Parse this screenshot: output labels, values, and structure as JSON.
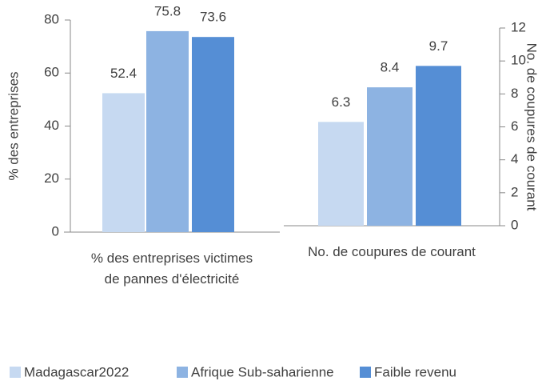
{
  "chart_data": [
    {
      "type": "bar",
      "ylabel": "% des entreprises",
      "categories": [
        "% des entreprises victimes de pannes d'électricité"
      ],
      "series": [
        {
          "name": "Madagascar2022",
          "color": "#c6d9f1",
          "values": [
            52.4
          ]
        },
        {
          "name": "Afrique Sub-saharienne",
          "color": "#8db3e2",
          "values": [
            75.8
          ]
        },
        {
          "name": "Faible revenu",
          "color": "#558ed5",
          "values": [
            73.6
          ]
        }
      ],
      "ylim": [
        0,
        80
      ],
      "yticks": [
        0,
        20,
        40,
        60,
        80
      ],
      "legend": "bottom"
    },
    {
      "type": "bar",
      "y2label": "No. de coupures de courant",
      "categories": [
        "No. de coupures de courant"
      ],
      "series": [
        {
          "name": "Madagascar2022",
          "color": "#c6d9f1",
          "values": [
            6.3
          ],
          "axis": "y2"
        },
        {
          "name": "Afrique Sub-saharienne",
          "color": "#8db3e2",
          "values": [
            8.4
          ],
          "axis": "y2"
        },
        {
          "name": "Faible revenu",
          "color": "#558ed5",
          "values": [
            9.7
          ],
          "axis": "y2"
        }
      ],
      "y2lim": [
        0,
        12
      ],
      "y2ticks": [
        0,
        2,
        4,
        6,
        8,
        10,
        12
      ]
    }
  ]
}
